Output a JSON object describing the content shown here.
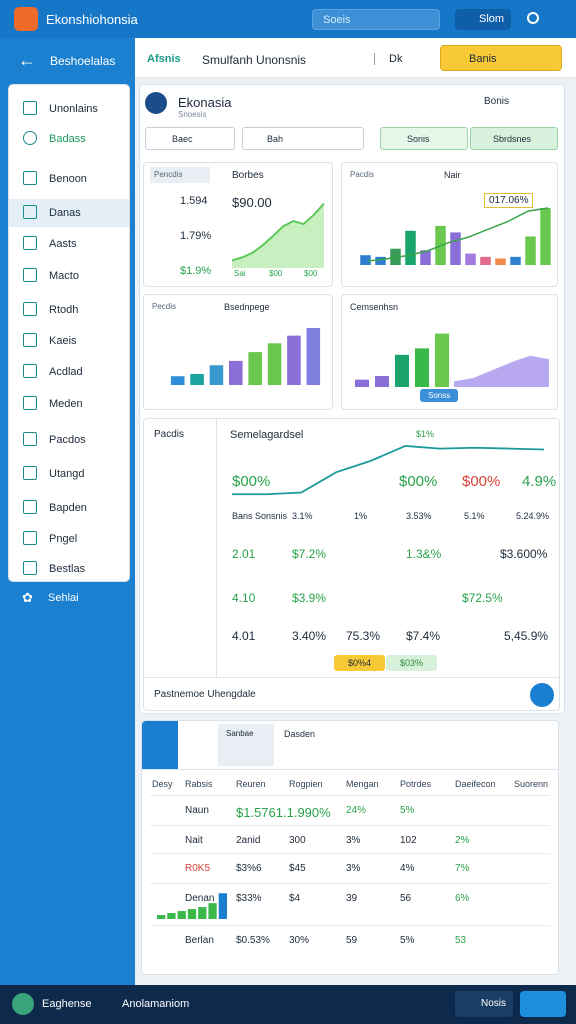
{
  "header": {
    "app_title": "Ekonshiohonsia",
    "search": "Soeis",
    "user": "Slom"
  },
  "toolbar": {
    "back_label": "Beshoelalas",
    "tab1": "Afsnis",
    "tab2": "Smulfanh Unonsnis",
    "dropdown": "Dk",
    "button": "Banis"
  },
  "sidebar": {
    "items": [
      "Unonlains",
      "Badass",
      "Benoon",
      "Danas",
      "Aasts",
      "Macto",
      "Rtodh",
      "Kaeis",
      "Acdlad",
      "Meden",
      "Pacdos",
      "Utangd",
      "Bapden",
      "Pngel",
      "Bestlas"
    ],
    "footer": "Sehlai"
  },
  "panel": {
    "title": "Ekonasia",
    "subtitle": "Snoesis",
    "action": "Bonis",
    "filter1": "Baec",
    "filter2": "Bah",
    "filter3": "Sonis",
    "filter4": "Sbrdsnes"
  },
  "cards": [
    {
      "title": "Borbes",
      "label": "Pencdis",
      "stats": [
        "1.594",
        "1.79%",
        "$1.9%"
      ],
      "headline": "$90.00",
      "values": [
        10,
        14,
        20,
        30,
        42,
        55,
        62,
        58,
        70,
        85
      ],
      "color": "#5cc85a",
      "axis": [
        "Sai",
        "$00",
        "$00"
      ]
    },
    {
      "title": "Nair",
      "label": "Pacdis",
      "annotation": "017.06%",
      "values": [
        12,
        10,
        20,
        42,
        18,
        48,
        40,
        14,
        10,
        8,
        10,
        35,
        70
      ],
      "colors": [
        "#2f7fd0",
        "#2f7fd0",
        "#3a9a5a",
        "#1aa36a",
        "#8a6fd8",
        "#6bc84f",
        "#8a6fd8",
        "#a07ae0",
        "#e06a8a",
        "#f08a4a",
        "#2f7fd0",
        "#6bc84f",
        "#6bc84f"
      ],
      "line": [
        5,
        8,
        12,
        18,
        28,
        35,
        45,
        55,
        68,
        72
      ],
      "line_color": "#3aa34a"
    },
    {
      "title": "Bsednpege",
      "label": "Pecdis",
      "values": [
        8,
        10,
        18,
        22,
        30,
        38,
        45,
        52
      ],
      "colors": [
        "#2f8fd8",
        "#1aa3a0",
        "#3a9ad0",
        "#8a6fd8",
        "#6bc84f",
        "#6bc84f",
        "#8a6fd8",
        "#7f7fe0"
      ]
    },
    {
      "title": "Cemsenhsn",
      "button": "Sonss",
      "values": [
        8,
        12,
        35,
        42,
        58
      ],
      "colors": [
        "#8a6fd8",
        "#8a6fd8",
        "#1aa36a",
        "#3ab84a",
        "#6bc84f"
      ],
      "area": [
        5,
        8,
        15,
        22,
        28,
        25
      ],
      "area_color": "#b8a8f0"
    }
  ],
  "big": {
    "label": "Pacdis",
    "title": "Semelagardsel",
    "peak": "$1%",
    "line": [
      10,
      10,
      12,
      35,
      48,
      65,
      62,
      63,
      62,
      61
    ],
    "line_color": "#1a9a9a",
    "rows": [
      [
        "$00%",
        "$00%",
        "$00%",
        "4.9%"
      ],
      [
        "Bans Sonsnis",
        "3.1%",
        "1%",
        "3.53%",
        "5.1%",
        "5.24.9%"
      ],
      [
        "2.01",
        "$7.2%",
        "1.3&%",
        "$3.600%"
      ],
      [
        "4.10",
        "$3.9%",
        "$72.5%"
      ],
      [
        "4.01",
        "3.40%",
        "75.3%",
        "$7.4%",
        "5,45.9%"
      ]
    ],
    "chips": [
      "$0%4",
      "$03%"
    ],
    "footer": "Pastnemoe Uhengdale"
  },
  "table": {
    "tab1": "Sanbae",
    "tab2": "Dasden",
    "headers": [
      "Desy",
      "Rabsis",
      "Reuren",
      "Rogpien",
      "Mengan",
      "Potrdes",
      "Daeifecon",
      "Suorenn"
    ],
    "rows": [
      [
        null,
        "Naun",
        "$1.5761.1.990%",
        null,
        "24%",
        "5%",
        null,
        null
      ],
      [
        null,
        "Nait",
        "2anid",
        "300",
        "3%",
        "102",
        "2%",
        null
      ],
      [
        null,
        "R0K5",
        "$3%6",
        "$45",
        "3%",
        "4%",
        "7%",
        null
      ],
      [
        null,
        "Denan",
        "$33%",
        "$4",
        "39",
        "56",
        "6%",
        null
      ],
      [
        null,
        "Berlan",
        "$0.53%",
        "30%",
        "59",
        "5%",
        "53",
        null
      ]
    ],
    "spark": [
      4,
      6,
      8,
      10,
      12,
      16,
      26
    ]
  },
  "bottom": {
    "left": "Eaghense",
    "center": "Anolamaniom",
    "right": "Nosis"
  }
}
